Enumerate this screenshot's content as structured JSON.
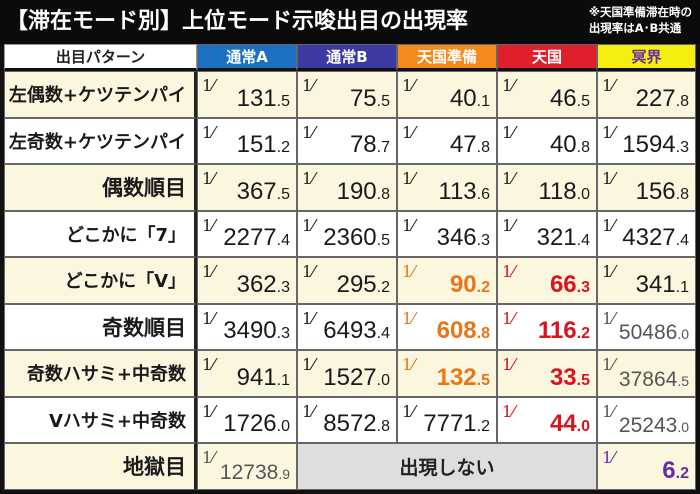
{
  "header": {
    "title": "【滞在モード別】上位モード示唆出目の出現率",
    "note_line1": "※天国準備滞在時の",
    "note_line2": "出現率はA･B共通"
  },
  "columns": {
    "pattern": "出目パターン",
    "a": "通常A",
    "b": "通常B",
    "prep": "天国準備",
    "heaven": "天国",
    "underworld": "冥界"
  },
  "fraction_symbol": "1⁄",
  "rows": [
    {
      "label": "左偶数+ケツテンパイ",
      "a": [
        "131",
        ".5"
      ],
      "b": [
        "75",
        ".5"
      ],
      "prep": [
        "40",
        ".1"
      ],
      "heaven": [
        "46",
        ".5"
      ],
      "underworld": [
        "227",
        ".8"
      ]
    },
    {
      "label": "左奇数+ケツテンパイ",
      "a": [
        "151",
        ".2"
      ],
      "b": [
        "78",
        ".7"
      ],
      "prep": [
        "47",
        ".8"
      ],
      "heaven": [
        "40",
        ".8"
      ],
      "underworld": [
        "1594",
        ".3"
      ]
    },
    {
      "label": "偶数順目",
      "a": [
        "367",
        ".5"
      ],
      "b": [
        "190",
        ".8"
      ],
      "prep": [
        "113",
        ".6"
      ],
      "heaven": [
        "118",
        ".0"
      ],
      "underworld": [
        "156",
        ".8"
      ]
    },
    {
      "label": "どこかに「7」",
      "a": [
        "2277",
        ".4"
      ],
      "b": [
        "2360",
        ".5"
      ],
      "prep": [
        "346",
        ".3"
      ],
      "heaven": [
        "321",
        ".4"
      ],
      "underworld": [
        "4327",
        ".4"
      ]
    },
    {
      "label": "どこかに「V」",
      "a": [
        "362",
        ".3"
      ],
      "b": [
        "295",
        ".2"
      ],
      "prep": [
        "90",
        ".2"
      ],
      "heaven": [
        "66",
        ".3"
      ],
      "underworld": [
        "341",
        ".1"
      ]
    },
    {
      "label": "奇数順目",
      "a": [
        "3490",
        ".3"
      ],
      "b": [
        "6493",
        ".4"
      ],
      "prep": [
        "608",
        ".8"
      ],
      "heaven": [
        "116",
        ".2"
      ],
      "underworld": [
        "50486",
        ".0"
      ]
    },
    {
      "label": "奇数ハサミ+中奇数",
      "a": [
        "941",
        ".1"
      ],
      "b": [
        "1527",
        ".0"
      ],
      "prep": [
        "132",
        ".5"
      ],
      "heaven": [
        "33",
        ".5"
      ],
      "underworld": [
        "37864",
        ".5"
      ]
    },
    {
      "label": "Vハサミ+中奇数",
      "a": [
        "1726",
        ".0"
      ],
      "b": [
        "8572",
        ".8"
      ],
      "prep": [
        "7771",
        ".2"
      ],
      "heaven": [
        "44",
        ".0"
      ],
      "underworld": [
        "25243",
        ".0"
      ]
    }
  ],
  "hell_row": {
    "label": "地獄目",
    "a": [
      "12738",
      ".9"
    ],
    "merged_text": "出現しない",
    "underworld": [
      "6",
      ".2"
    ]
  }
}
